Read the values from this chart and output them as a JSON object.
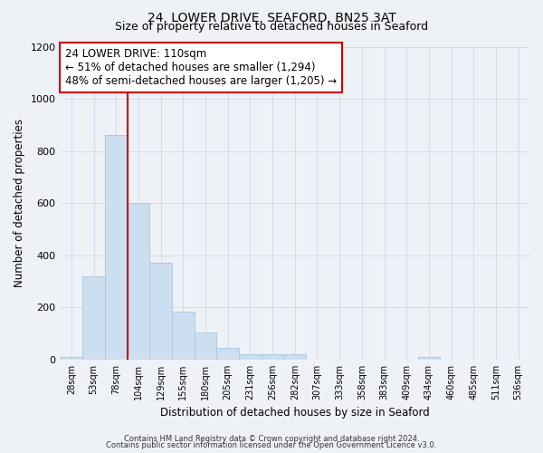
{
  "title": "24, LOWER DRIVE, SEAFORD, BN25 3AT",
  "subtitle": "Size of property relative to detached houses in Seaford",
  "xlabel": "Distribution of detached houses by size in Seaford",
  "ylabel": "Number of detached properties",
  "bar_labels": [
    "28sqm",
    "53sqm",
    "78sqm",
    "104sqm",
    "129sqm",
    "155sqm",
    "180sqm",
    "205sqm",
    "231sqm",
    "256sqm",
    "282sqm",
    "307sqm",
    "333sqm",
    "358sqm",
    "383sqm",
    "409sqm",
    "434sqm",
    "460sqm",
    "485sqm",
    "511sqm",
    "536sqm"
  ],
  "bar_values": [
    10,
    320,
    860,
    600,
    370,
    185,
    105,
    45,
    20,
    20,
    20,
    0,
    0,
    0,
    0,
    0,
    10,
    0,
    0,
    0,
    0
  ],
  "bar_color": "#ccdff0",
  "bar_edge_color": "#a8c4de",
  "vline_x_idx": 2.5,
  "vline_color": "#cc0000",
  "annotation_title": "24 LOWER DRIVE: 110sqm",
  "annotation_line1": "← 51% of detached houses are smaller (1,294)",
  "annotation_line2": "48% of semi-detached houses are larger (1,205) →",
  "annotation_box_color": "#ffffff",
  "annotation_box_edge": "#cc0000",
  "ylim": [
    0,
    1200
  ],
  "yticks": [
    0,
    200,
    400,
    600,
    800,
    1000,
    1200
  ],
  "grid_color": "#d0dce8",
  "background_color": "#eef2f7",
  "title_fontsize": 10,
  "subtitle_fontsize": 9,
  "footer_line1": "Contains HM Land Registry data © Crown copyright and database right 2024.",
  "footer_line2": "Contains public sector information licensed under the Open Government Licence v3.0."
}
